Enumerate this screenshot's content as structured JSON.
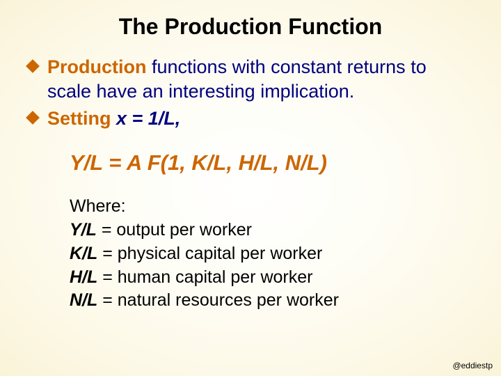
{
  "title": "The Production Function",
  "title_fontsize": 32,
  "bullets": [
    {
      "lead": "Production",
      "rest": " functions with constant returns to scale have an interesting implication."
    },
    {
      "lead": "Setting",
      "rest_italic": " x = 1/L,"
    }
  ],
  "bullet_fontsize": 27,
  "equation": "Y/L = A F(1, K/L, H/L, N/L)",
  "equation_fontsize": 31,
  "where_label": "Where:",
  "where_items": [
    {
      "var": "Y/L",
      "desc": " = output per worker"
    },
    {
      "var": "K/L",
      "desc": " = physical capital per worker"
    },
    {
      "var": "H/L",
      "desc": " = human capital per worker"
    },
    {
      "var": "N/L",
      "desc": " = natural resources per worker"
    }
  ],
  "where_fontsize": 25,
  "handle": "@eddiestp",
  "handle_fontsize": 12,
  "colors": {
    "accent": "#cc6600",
    "body": "#000080",
    "title": "#000000",
    "where_text": "#000000"
  }
}
